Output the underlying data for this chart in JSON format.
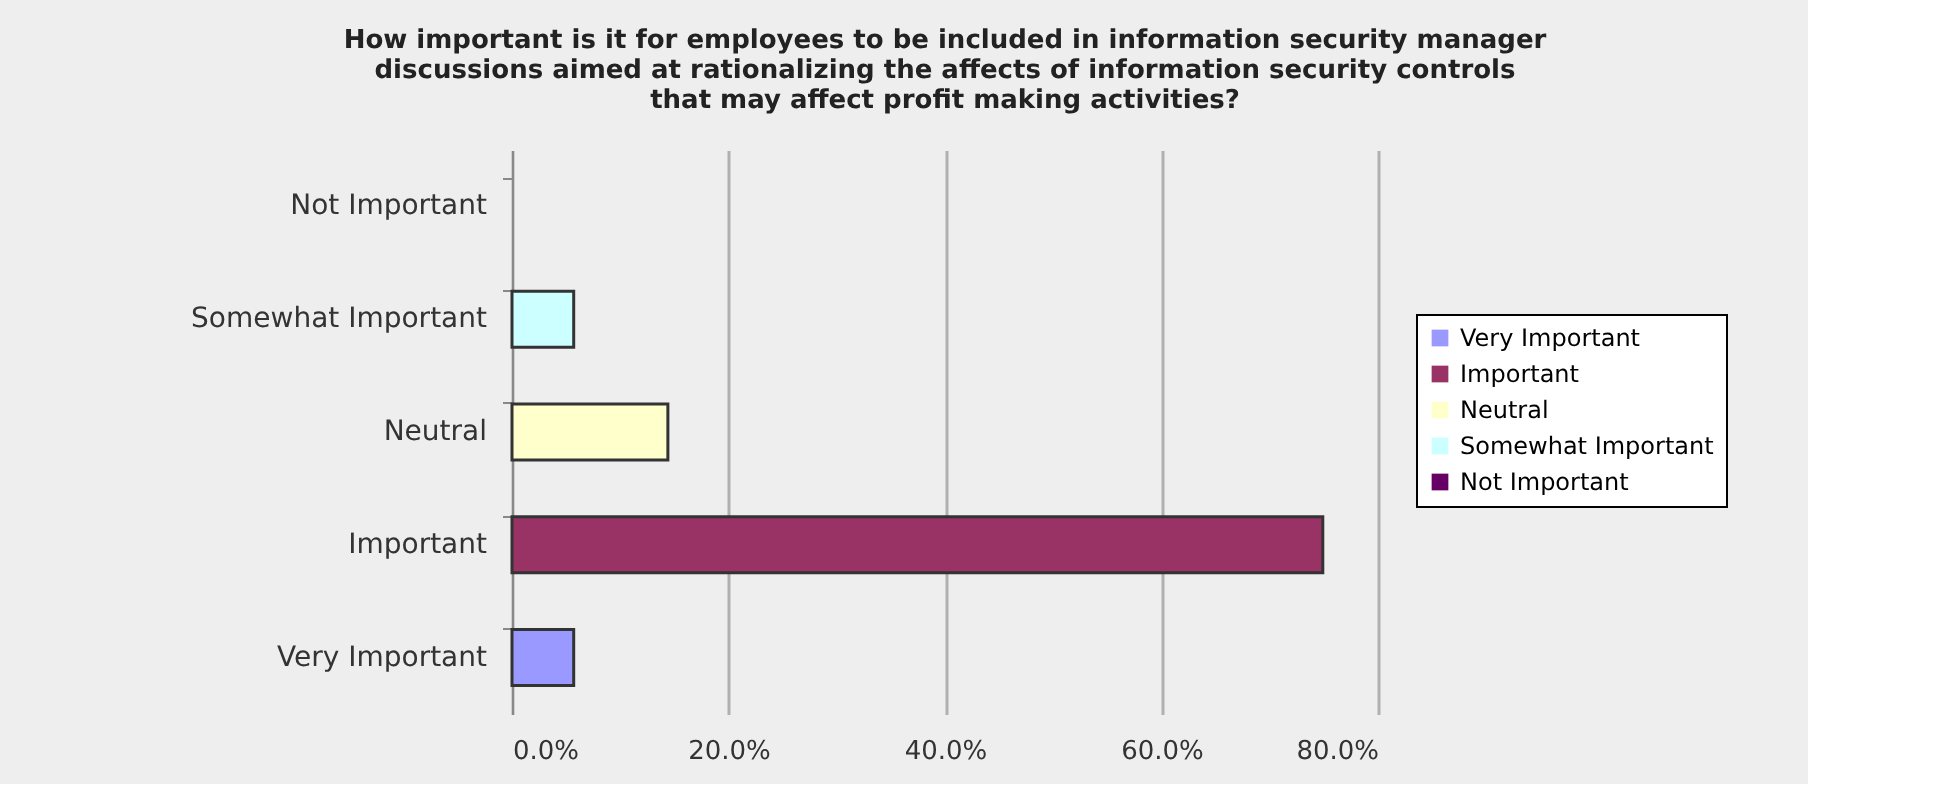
{
  "chart_data": {
    "type": "bar",
    "orientation": "horizontal",
    "title": "How important is it for employees to be included in information security manager discussions aimed at rationalizing the affects of information security controls that may affect profit making activities?",
    "categories": [
      "Not Important",
      "Somewhat Important",
      "Neutral",
      "Important",
      "Very Important"
    ],
    "series": [
      {
        "name": "Very Important",
        "color": "#9999ff",
        "values": [
          null,
          null,
          null,
          null,
          5.7
        ]
      },
      {
        "name": "Important",
        "color": "#993366",
        "values": [
          null,
          null,
          null,
          74.9,
          null
        ]
      },
      {
        "name": "Neutral",
        "color": "#ffffcc",
        "values": [
          null,
          null,
          14.4,
          null,
          null
        ]
      },
      {
        "name": "Somewhat Important",
        "color": "#ccffff",
        "values": [
          null,
          5.7,
          null,
          null,
          null
        ]
      },
      {
        "name": "Not Important",
        "color": "#660066",
        "values": [
          0,
          null,
          null,
          null,
          null
        ]
      }
    ],
    "xlim": [
      0,
      80
    ],
    "xticks": [
      {
        "value": 0,
        "label": "0.0%"
      },
      {
        "value": 20,
        "label": "20.0%"
      },
      {
        "value": 40,
        "label": "40.0%"
      },
      {
        "value": 60,
        "label": "60.0%"
      },
      {
        "value": 80,
        "label": "80.0%"
      }
    ],
    "grid": "x",
    "legend": "right"
  }
}
